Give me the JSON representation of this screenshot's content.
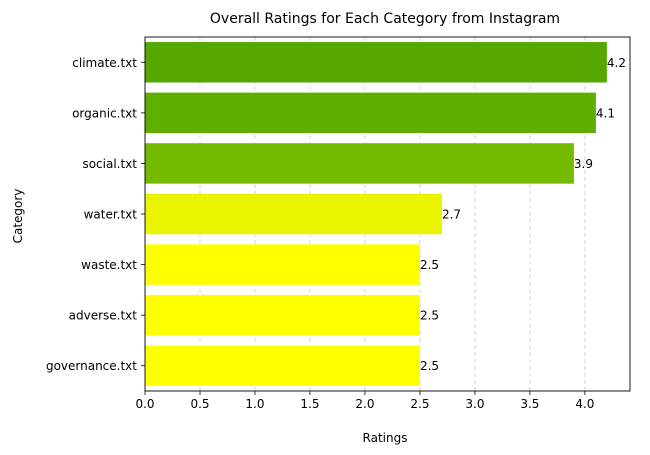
{
  "chart_data": {
    "type": "bar",
    "orientation": "horizontal",
    "title": "Overall Ratings for Each Category from Instagram",
    "xlabel": "Ratings",
    "ylabel": "Category",
    "categories": [
      "climate.txt",
      "organic.txt",
      "social.txt",
      "water.txt",
      "waste.txt",
      "adverse.txt",
      "governance.txt"
    ],
    "values": [
      4.2,
      4.1,
      3.9,
      2.7,
      2.5,
      2.5,
      2.5
    ],
    "value_labels": [
      "4.2",
      "4.1",
      "3.9",
      "2.7",
      "2.5",
      "2.5",
      "2.5"
    ],
    "bar_colors": [
      "#54a800",
      "#5eae00",
      "#74bb00",
      "#eaf400",
      "#ffff00",
      "#ffff00",
      "#ffff00"
    ],
    "xlim": [
      0,
      4.41
    ],
    "xticks": [
      0,
      0.5,
      1,
      1.5,
      2,
      2.5,
      3,
      3.5,
      4
    ],
    "xtick_labels": [
      "0.0",
      "0.5",
      "1.0",
      "1.5",
      "2.0",
      "2.5",
      "3.0",
      "3.5",
      "4.0"
    ],
    "grid": "x-axis, dashed",
    "legend": "none"
  }
}
